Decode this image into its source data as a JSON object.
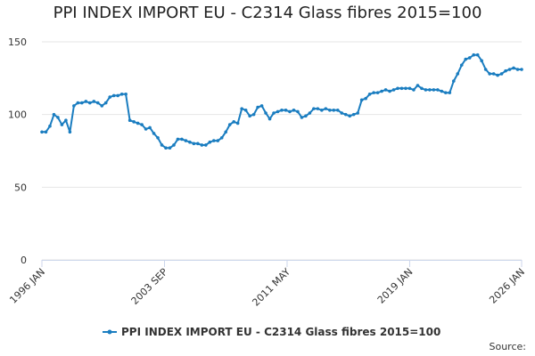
{
  "chart_data": {
    "type": "line",
    "title": "PPI INDEX IMPORT EU - C2314 Glass fibres 2015=100",
    "source": "Source:",
    "x": [
      "1996-01",
      "1996-04",
      "1996-07",
      "1996-10",
      "1997-01",
      "1997-04",
      "1997-07",
      "1997-10",
      "1998-01",
      "1998-04",
      "1998-07",
      "1998-10",
      "1999-01",
      "1999-04",
      "1999-07",
      "1999-10",
      "2000-01",
      "2000-04",
      "2000-07",
      "2000-10",
      "2001-01",
      "2001-04",
      "2001-07",
      "2001-10",
      "2002-01",
      "2002-04",
      "2002-07",
      "2002-10",
      "2003-01",
      "2003-04",
      "2003-07",
      "2003-10",
      "2004-01",
      "2004-04",
      "2004-07",
      "2004-10",
      "2005-01",
      "2005-04",
      "2005-07",
      "2005-10",
      "2006-01",
      "2006-04",
      "2006-07",
      "2006-10",
      "2007-01",
      "2007-04",
      "2007-07",
      "2007-10",
      "2008-01",
      "2008-04",
      "2008-07",
      "2008-10",
      "2009-01",
      "2009-04",
      "2009-07",
      "2009-10",
      "2010-01",
      "2010-04",
      "2010-07",
      "2010-10",
      "2011-01",
      "2011-04",
      "2011-07",
      "2011-10",
      "2012-01",
      "2012-04",
      "2012-07",
      "2012-10",
      "2013-01",
      "2013-04",
      "2013-07",
      "2013-10",
      "2014-01",
      "2014-04",
      "2014-07",
      "2014-10",
      "2015-01",
      "2015-04",
      "2015-07",
      "2015-10",
      "2016-01",
      "2016-04",
      "2016-07",
      "2016-10",
      "2017-01",
      "2017-04",
      "2017-07",
      "2017-10",
      "2018-01",
      "2018-04",
      "2018-07",
      "2018-10",
      "2019-01",
      "2019-04",
      "2019-07",
      "2019-10",
      "2020-01",
      "2020-04",
      "2020-07",
      "2020-10",
      "2021-01",
      "2021-04",
      "2021-07",
      "2021-10",
      "2022-01",
      "2022-04",
      "2022-07",
      "2022-10",
      "2023-01",
      "2023-04",
      "2023-07",
      "2023-10",
      "2024-01",
      "2024-04",
      "2024-07",
      "2024-10",
      "2025-01",
      "2025-04",
      "2025-07",
      "2025-10",
      "2026-01"
    ],
    "series": [
      {
        "name": "PPI INDEX IMPORT EU - C2314 Glass fibres 2015=100",
        "color": "#1a7dc0",
        "values": [
          88,
          88,
          92,
          100,
          98,
          93,
          96,
          88,
          106,
          108,
          108,
          109,
          108,
          109,
          108,
          106,
          108,
          112,
          113,
          113,
          114,
          114,
          96,
          95,
          94,
          93,
          90,
          91,
          87,
          84,
          79,
          77,
          77,
          79,
          83,
          83,
          82,
          81,
          80,
          80,
          79,
          79,
          81,
          82,
          82,
          84,
          88,
          93,
          95,
          94,
          104,
          103,
          99,
          100,
          105,
          106,
          101,
          97,
          101,
          102,
          103,
          103,
          102,
          103,
          102,
          98,
          99,
          101,
          104,
          104,
          103,
          104,
          103,
          103,
          103,
          101,
          100,
          99,
          100,
          101,
          110,
          111,
          114,
          115,
          115,
          116,
          117,
          116,
          117,
          118,
          118,
          118,
          118,
          117,
          120,
          118,
          117,
          117,
          117,
          117,
          116,
          115,
          115,
          123,
          128,
          134,
          138,
          139,
          141,
          141,
          137,
          131,
          128,
          128,
          127,
          128,
          130,
          131,
          132,
          131,
          131
        ]
      }
    ],
    "xlim": [
      "1996-01",
      "2026-01"
    ],
    "xticks": [
      {
        "value": "1996-01",
        "label": "1996 JAN"
      },
      {
        "value": "2003-09",
        "label": "2003 SEP"
      },
      {
        "value": "2011-05",
        "label": "2011 MAY"
      },
      {
        "value": "2019-01",
        "label": "2019 JAN"
      },
      {
        "value": "2026-01",
        "label": "2026 JAN"
      }
    ],
    "ylim": [
      0,
      150
    ],
    "yticks": [
      0,
      50,
      100,
      150
    ],
    "grid": true,
    "legend": "bottom"
  }
}
